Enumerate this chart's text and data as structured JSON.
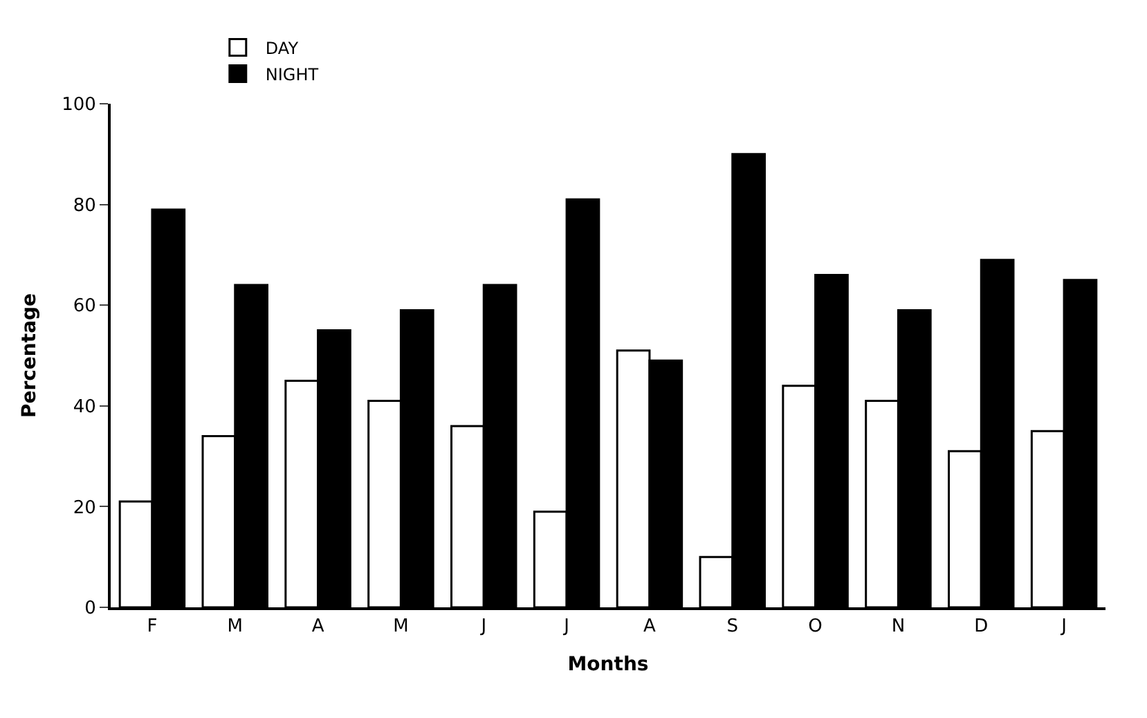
{
  "chart_data": {
    "type": "bar",
    "xlabel": "Months",
    "ylabel": "Percentage",
    "categories": [
      "F",
      "M",
      "A",
      "M",
      "J",
      "J",
      "A",
      "S",
      "O",
      "N",
      "D",
      "J"
    ],
    "series": [
      {
        "name": "DAY",
        "color": "#ffffff",
        "values": [
          21,
          34,
          45,
          41,
          36,
          19,
          51,
          10,
          44,
          41,
          31,
          35
        ]
      },
      {
        "name": "NIGHT",
        "color": "#000000",
        "values": [
          79,
          64,
          55,
          59,
          64,
          81,
          49,
          90,
          66,
          59,
          69,
          65
        ]
      }
    ],
    "ylim": [
      0,
      100
    ],
    "yticks": [
      0,
      20,
      40,
      60,
      80,
      100
    ],
    "legend": "top left"
  }
}
